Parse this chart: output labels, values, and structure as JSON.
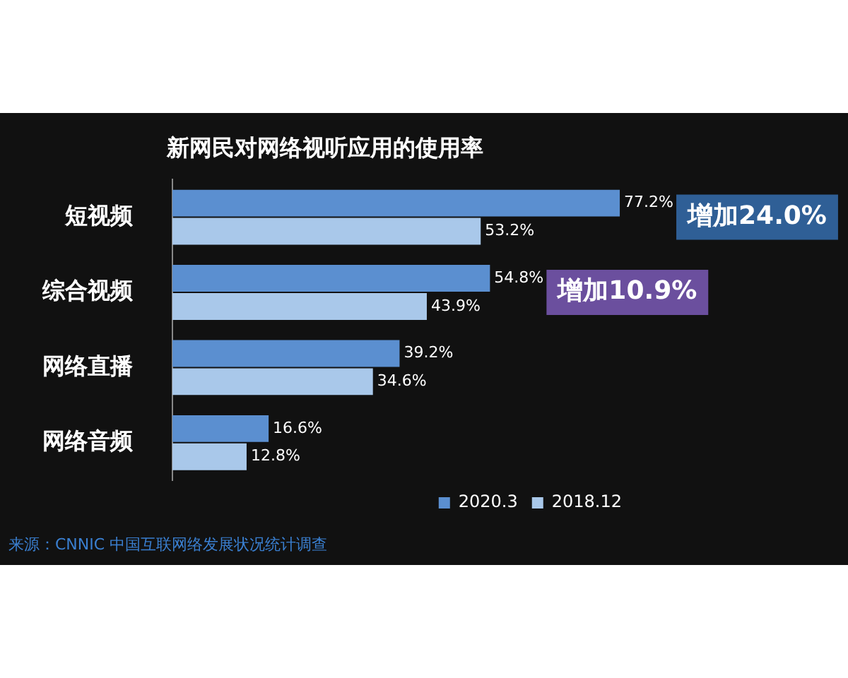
{
  "chart_data": {
    "type": "bar",
    "orientation": "horizontal",
    "title": "新网民对网络视听应用的使用率",
    "categories": [
      "短视频",
      "综合视频",
      "网络直播",
      "网络音频"
    ],
    "series": [
      {
        "name": "2020.3",
        "color": "#5b8fd0",
        "values": [
          77.2,
          54.8,
          39.2,
          16.6
        ],
        "value_labels": [
          "77.2%",
          "54.8%",
          "39.2%",
          "16.6%"
        ]
      },
      {
        "name": "2018.12",
        "color": "#a9c8ea",
        "values": [
          53.2,
          43.9,
          34.6,
          12.8
        ],
        "value_labels": [
          "53.2%",
          "43.9%",
          "34.6%",
          "12.8%"
        ]
      }
    ],
    "tick_labels": "y",
    "legend": "bottom right",
    "annotations": [
      {
        "text": "增加24.0%",
        "x": 77.2,
        "y": "短视频"
      },
      {
        "text": "增加10.9%",
        "x": 54.8,
        "y": "综合视频"
      },
      "来源：CNNIC 中国互联网络发展状况统计调查"
    ]
  }
}
